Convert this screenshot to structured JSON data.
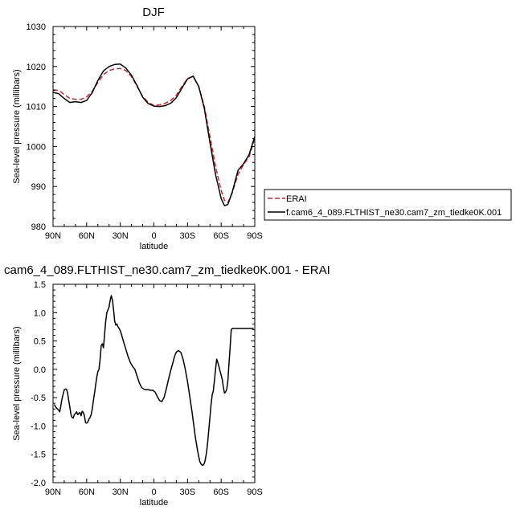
{
  "chart_data": [
    {
      "type": "line",
      "title": "DJF",
      "xlabel": "latitude",
      "ylabel": "Sea-level pressure (millibars)",
      "xlim": [
        90,
        -90
      ],
      "ylim": [
        980,
        1030
      ],
      "xticks": [
        90,
        60,
        30,
        0,
        -30,
        -60,
        -90
      ],
      "xtick_labels": [
        "90N",
        "60N",
        "30N",
        "0",
        "30S",
        "60S",
        "90S"
      ],
      "yticks": [
        980,
        990,
        1000,
        1010,
        1020,
        1030
      ],
      "ytick_labels": [
        "980",
        "990",
        "1000",
        "1010",
        "1020",
        "1030"
      ],
      "grid": false,
      "legend": "right",
      "series": [
        {
          "name": "ERAI",
          "color": "#dd2222",
          "dash": "dashed",
          "x": [
            90,
            85,
            80,
            75,
            70,
            65,
            60,
            55,
            50,
            45,
            40,
            35,
            30,
            25,
            20,
            15,
            10,
            5,
            0,
            -5,
            -10,
            -15,
            -20,
            -25,
            -30,
            -35,
            -40,
            -45,
            -50,
            -55,
            -60,
            -63,
            -66,
            -70,
            -75,
            -80,
            -85,
            -90
          ],
          "y": [
            1014.2,
            1014.0,
            1013.0,
            1012.0,
            1011.8,
            1011.8,
            1012.4,
            1013.8,
            1016.0,
            1018.0,
            1019.0,
            1019.4,
            1019.5,
            1019.0,
            1017.5,
            1015.0,
            1012.5,
            1011.0,
            1010.3,
            1010.4,
            1010.8,
            1011.5,
            1012.8,
            1015.0,
            1017.0,
            1017.5,
            1015.0,
            1010.0,
            1002.5,
            995.0,
            989.0,
            986.5,
            986.0,
            988.5,
            993.0,
            995.5,
            997.5,
            1002.0
          ]
        },
        {
          "name": "f.cam6_4_089.FLTHIST_ne30.cam7_zm_tiedke0K.001",
          "color": "#000000",
          "dash": "solid",
          "x": [
            90,
            85,
            80,
            75,
            70,
            65,
            60,
            55,
            50,
            45,
            40,
            35,
            30,
            25,
            20,
            15,
            10,
            5,
            0,
            -5,
            -10,
            -15,
            -20,
            -25,
            -30,
            -35,
            -40,
            -45,
            -50,
            -55,
            -60,
            -63,
            -66,
            -70,
            -75,
            -80,
            -85,
            -90
          ],
          "y": [
            1013.5,
            1013.2,
            1012.0,
            1011.0,
            1011.2,
            1011.0,
            1011.5,
            1013.5,
            1016.5,
            1018.9,
            1020.0,
            1020.5,
            1020.6,
            1019.6,
            1017.8,
            1015.2,
            1012.3,
            1010.7,
            1010.1,
            1010.0,
            1010.2,
            1010.8,
            1012.2,
            1014.6,
            1016.9,
            1017.6,
            1015.0,
            1009.5,
            1001.0,
            993.0,
            987.0,
            985.2,
            985.5,
            988.7,
            994.0,
            995.7,
            998.0,
            1002.5
          ]
        }
      ]
    },
    {
      "type": "line",
      "title": "cam6_4_089.FLTHIST_ne30.cam7_zm_tiedke0K.001 - ERAI",
      "xlabel": "latitude",
      "ylabel": "Sea-level pressure (millibars)",
      "xlim": [
        90,
        -90
      ],
      "ylim": [
        -2.0,
        1.5
      ],
      "xticks": [
        90,
        60,
        30,
        0,
        -30,
        -60,
        -90
      ],
      "xtick_labels": [
        "90N",
        "60N",
        "30N",
        "0",
        "30S",
        "60S",
        "90S"
      ],
      "yticks": [
        -2.0,
        -1.5,
        -1.0,
        -0.5,
        0.0,
        0.5,
        1.0,
        1.5
      ],
      "ytick_labels": [
        "-2.0",
        "-1.5",
        "-1.0",
        "-0.5",
        "0.0",
        "0.5",
        "1.0",
        "1.5"
      ],
      "grid": false,
      "series": [
        {
          "color": "#000000",
          "dash": "solid",
          "x": [
            89,
            87,
            85,
            84,
            82,
            80,
            79,
            78,
            77,
            76,
            75,
            74,
            73,
            72,
            71,
            70,
            69,
            68,
            67,
            66,
            65,
            64,
            63,
            62,
            61,
            60,
            59,
            58,
            57,
            56,
            55,
            54,
            53,
            52,
            51,
            50,
            49,
            48,
            47,
            46,
            45,
            44,
            43,
            42,
            41,
            40,
            39,
            38,
            37,
            36,
            35,
            34,
            33,
            32,
            31,
            30,
            29,
            28,
            27,
            25,
            23,
            21,
            19,
            17,
            15,
            13,
            11,
            9,
            7,
            5,
            3,
            1,
            -1,
            -3,
            -5,
            -7,
            -9,
            -11,
            -13,
            -15,
            -17,
            -18,
            -19,
            -20,
            -21,
            -22,
            -24,
            -26,
            -28,
            -30,
            -32,
            -34,
            -35,
            -36,
            -37,
            -38,
            -39,
            -40,
            -41,
            -42,
            -43,
            -44,
            -45,
            -46,
            -47,
            -48,
            -49,
            -50,
            -51,
            -52,
            -53,
            -54,
            -55,
            -56,
            -57,
            -58,
            -59,
            -60,
            -61,
            -62,
            -63,
            -64,
            -65,
            -66,
            -67,
            -68,
            -69,
            -70,
            -71,
            -72,
            -73,
            -74,
            -75,
            -76,
            -77,
            -78,
            -79,
            -80,
            -81,
            -82,
            -83,
            -84,
            -85,
            -86,
            -87,
            -88,
            -89
          ],
          "y": [
            -0.62,
            -0.68,
            -0.72,
            -0.75,
            -0.52,
            -0.36,
            -0.35,
            -0.35,
            -0.42,
            -0.55,
            -0.67,
            -0.8,
            -0.85,
            -0.86,
            -0.8,
            -0.78,
            -0.75,
            -0.8,
            -0.78,
            -0.76,
            -0.82,
            -0.74,
            -0.76,
            -0.82,
            -0.94,
            -0.95,
            -0.93,
            -0.88,
            -0.85,
            -0.8,
            -0.7,
            -0.55,
            -0.42,
            -0.28,
            -0.14,
            -0.04,
            0.0,
            0.18,
            0.42,
            0.45,
            0.38,
            0.62,
            0.85,
            1.0,
            1.05,
            1.1,
            1.22,
            1.3,
            1.22,
            1.05,
            0.85,
            0.78,
            0.8,
            0.75,
            0.72,
            0.68,
            0.62,
            0.55,
            0.48,
            0.35,
            0.22,
            0.12,
            0.05,
            0.0,
            -0.12,
            -0.24,
            -0.32,
            -0.35,
            -0.36,
            -0.36,
            -0.37,
            -0.37,
            -0.4,
            -0.48,
            -0.55,
            -0.57,
            -0.5,
            -0.35,
            -0.18,
            -0.02,
            0.12,
            0.2,
            0.26,
            0.3,
            0.32,
            0.33,
            0.3,
            0.18,
            0.0,
            -0.22,
            -0.48,
            -0.75,
            -0.9,
            -1.05,
            -1.2,
            -1.32,
            -1.44,
            -1.54,
            -1.63,
            -1.67,
            -1.69,
            -1.69,
            -1.66,
            -1.58,
            -1.46,
            -1.28,
            -1.06,
            -0.85,
            -0.62,
            -0.45,
            -0.38,
            -0.2,
            0.0,
            0.18,
            0.12,
            0.05,
            -0.03,
            -0.1,
            -0.18,
            -0.32,
            -0.42,
            -0.4,
            -0.35,
            -0.2,
            0.1,
            0.38,
            0.7,
            0.72,
            0.72,
            0.72,
            0.72,
            0.72,
            0.72,
            0.72,
            0.72,
            0.72,
            0.72,
            0.72,
            0.72,
            0.72,
            0.72,
            0.72,
            0.72,
            0.72,
            0.72,
            0.72,
            0.72
          ]
        }
      ]
    }
  ]
}
